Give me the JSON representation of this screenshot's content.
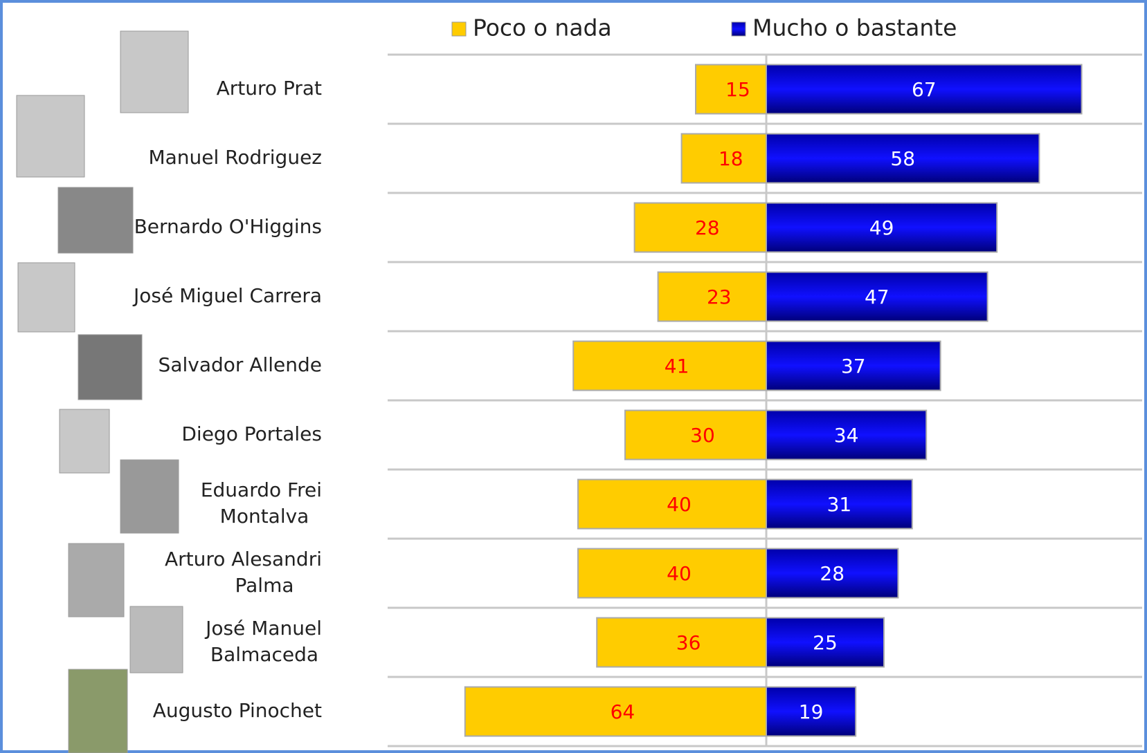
{
  "chart_data": {
    "type": "diverging-bar",
    "categories": [
      "Arturo Prat",
      "Manuel Rodriguez",
      "Bernardo O'Higgins",
      "José Miguel Carrera",
      "Salvador Allende",
      "Diego Portales",
      "Eduardo Frei Montalva",
      "Arturo Alesandri Palma",
      "José Manuel Balmaceda",
      "Augusto Pinochet"
    ],
    "series": [
      {
        "name": "Poco o nada",
        "color": "#ffcc00",
        "values": [
          15,
          18,
          28,
          23,
          41,
          30,
          40,
          40,
          36,
          64
        ]
      },
      {
        "name": "Mucho o bastante",
        "color": "#0000e0",
        "values": [
          67,
          58,
          49,
          47,
          37,
          34,
          31,
          28,
          25,
          19
        ]
      }
    ]
  }
}
